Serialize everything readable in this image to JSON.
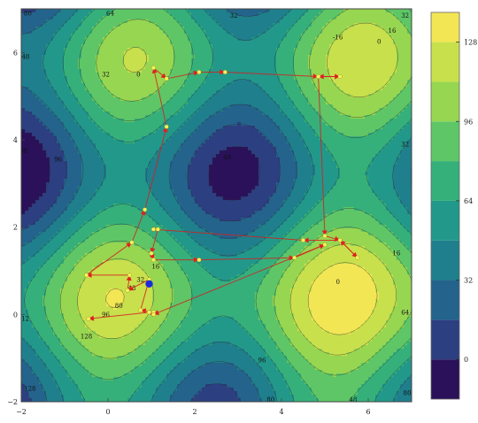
{
  "chart_data": {
    "type": "contour",
    "title": "",
    "xlabel": "",
    "ylabel": "",
    "xlim": [
      -2,
      7
    ],
    "ylim": [
      -2,
      7
    ],
    "x_ticks": [
      "-2",
      "0",
      "2",
      "4",
      "6"
    ],
    "y_ticks": [
      "-2",
      "0",
      "2",
      "4",
      "6"
    ],
    "colorbar": {
      "ticks": [
        "128",
        "96",
        "64",
        "32",
        "0"
      ],
      "levels": [
        -16,
        0,
        16,
        32,
        48,
        64,
        80,
        96,
        112,
        128,
        140
      ],
      "colors": [
        "#2a115a",
        "#2c3f81",
        "#24638c",
        "#1f7f8c",
        "#22988a",
        "#35b07b",
        "#5ec666",
        "#97d651",
        "#c8e04c",
        "#f2e654"
      ]
    },
    "contour_labels": [
      {
        "text": "80",
        "x": -1.85,
        "y": 6.85
      },
      {
        "text": "64",
        "x": 0.05,
        "y": 6.85
      },
      {
        "text": "32",
        "x": 2.9,
        "y": 6.8
      },
      {
        "text": "32",
        "x": 6.85,
        "y": 6.8
      },
      {
        "text": "48",
        "x": -1.9,
        "y": 5.85
      },
      {
        "text": "16",
        "x": 6.55,
        "y": 6.45
      },
      {
        "text": "0",
        "x": 6.25,
        "y": 6.2
      },
      {
        "text": "-16",
        "x": 5.3,
        "y": 6.3
      },
      {
        "text": "32",
        "x": -0.05,
        "y": 5.45
      },
      {
        "text": "0",
        "x": 0.7,
        "y": 5.45
      },
      {
        "text": "80",
        "x": -1.95,
        "y": 3.7
      },
      {
        "text": "96",
        "x": -1.15,
        "y": 3.5
      },
      {
        "text": "32",
        "x": 6.85,
        "y": 3.85
      },
      {
        "text": "48",
        "x": 2.75,
        "y": 3.55
      },
      {
        "text": "16",
        "x": 6.65,
        "y": 1.35
      },
      {
        "text": "0",
        "x": 5.3,
        "y": 0.7
      },
      {
        "text": "32",
        "x": 0.75,
        "y": 0.75
      },
      {
        "text": "16",
        "x": 1.1,
        "y": 1.05
      },
      {
        "text": "48",
        "x": 0.55,
        "y": 0.55
      },
      {
        "text": "80",
        "x": 0.25,
        "y": 0.15
      },
      {
        "text": "96",
        "x": -0.05,
        "y": -0.05
      },
      {
        "text": "112",
        "x": -1.95,
        "y": -0.15
      },
      {
        "text": "128",
        "x": -0.5,
        "y": -0.55
      },
      {
        "text": "64",
        "x": 6.85,
        "y": 0.0
      },
      {
        "text": "96",
        "x": 3.55,
        "y": -1.1
      },
      {
        "text": "128",
        "x": -1.8,
        "y": -1.75
      },
      {
        "text": "80",
        "x": 3.75,
        "y": -2.0
      },
      {
        "text": "48",
        "x": 5.65,
        "y": -2.0
      },
      {
        "text": "80",
        "x": 6.9,
        "y": -1.85
      }
    ],
    "path_points": [
      [
        1.05,
        0.05
      ],
      [
        0.75,
        0.1
      ],
      [
        0.95,
        0.8
      ],
      [
        0.45,
        0.55
      ],
      [
        0.5,
        0.9
      ],
      [
        -0.5,
        0.9
      ],
      [
        0.55,
        1.65
      ],
      [
        0.85,
        2.4
      ],
      [
        1.35,
        4.3
      ],
      [
        1.05,
        5.65
      ],
      [
        1.35,
        5.4
      ],
      [
        2.1,
        5.55
      ],
      [
        2.7,
        5.55
      ],
      [
        4.85,
        5.45
      ],
      [
        5.35,
        5.45
      ],
      [
        4.85,
        5.45
      ],
      [
        5.0,
        1.8
      ],
      [
        5.35,
        1.7
      ],
      [
        5.75,
        1.3
      ],
      [
        5.35,
        1.7
      ],
      [
        4.5,
        1.7
      ],
      [
        1.05,
        1.95
      ],
      [
        1.15,
        1.95
      ],
      [
        1.0,
        1.4
      ],
      [
        1.05,
        1.25
      ],
      [
        2.1,
        1.25
      ],
      [
        4.3,
        1.3
      ],
      [
        5.0,
        1.6
      ],
      [
        1.05,
        0.0
      ],
      [
        0.95,
        0.05
      ],
      [
        -0.45,
        -0.1
      ]
    ],
    "current_point": [
      0.95,
      0.7
    ]
  }
}
